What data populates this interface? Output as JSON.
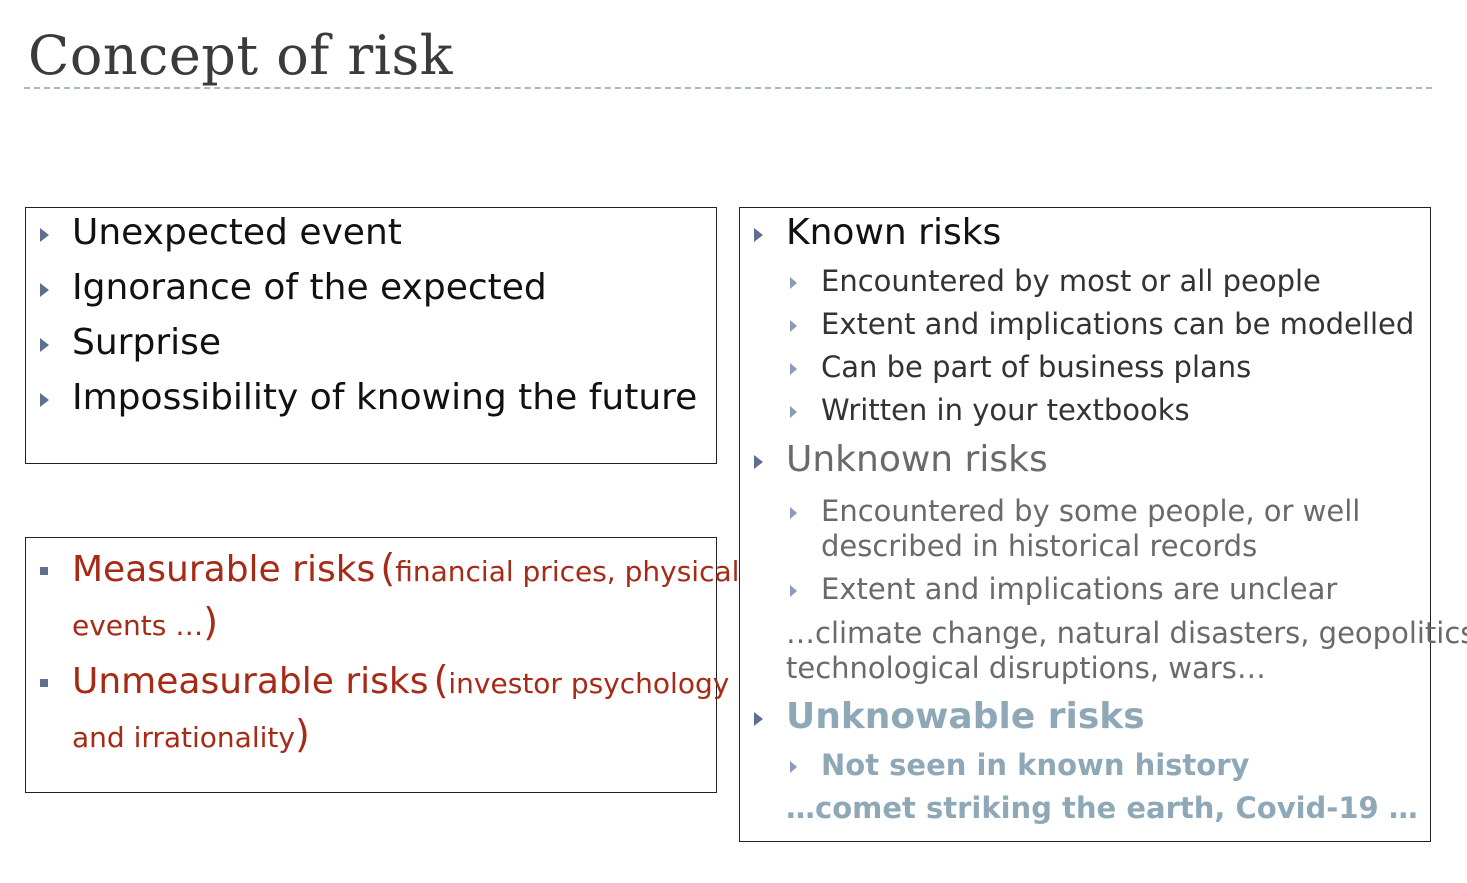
{
  "slide": {
    "title": "Concept of risk"
  },
  "left_top": {
    "items": [
      "Unexpected event",
      "Ignorance of the expected",
      "Surprise",
      "Impossibility of knowing the future"
    ]
  },
  "left_bottom": {
    "measurable": {
      "label": "Measurable risks",
      "open": "(",
      "detail_line1": "financial prices, physical",
      "detail_line2": "events …",
      "close": ")"
    },
    "unmeasurable": {
      "label": "Unmeasurable risks",
      "open": "(",
      "detail_line1": "investor psychology",
      "detail_line2": "and irrationality",
      "close": ")"
    }
  },
  "right": {
    "known": {
      "heading": "Known risks",
      "items": [
        "Encountered by most or all people",
        "Extent and implications can be modelled",
        "Can be part of business plans",
        "Written in your textbooks"
      ]
    },
    "unknown": {
      "heading": "Unknown risks",
      "item1_line1": "Encountered by some people, or well",
      "item1_line2": "described in historical records",
      "item2": "Extent and implications are unclear",
      "examples_line1": "…climate change, natural disasters, geopolitics,",
      "examples_line2": "technological disruptions, wars…"
    },
    "unknowable": {
      "heading": "Unknowable risks",
      "item": "Not seen in known history",
      "examples": "…comet striking the earth, Covid-19 …"
    }
  }
}
